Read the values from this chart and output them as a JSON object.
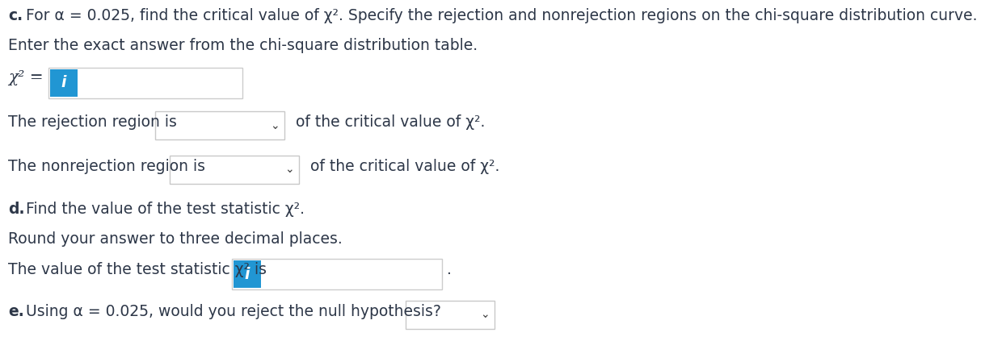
{
  "bg_color": "#ffffff",
  "text_color": "#2d3748",
  "line1_bold": "c.",
  "line1_rest": " For α = 0.025, find the critical value of χ². Specify the rejection and nonrejection regions on the chi-square distribution curve.",
  "line2": "Enter the exact answer from the chi-square distribution table.",
  "chi_sq_label": "χ² =",
  "info_btn_color": "#2196d3",
  "info_btn_text": "i",
  "rejection_label": "The rejection region is",
  "rejection_suffix": " of the critical value of χ².",
  "nonrejection_label": "The nonrejection region is",
  "nonrejection_suffix": " of the critical value of χ².",
  "part_d_bold": "d.",
  "part_d_rest": " Find the value of the test statistic χ².",
  "part_d_line2": "Round your answer to three decimal places.",
  "part_d_line3_pre": "The value of the test statistic χ² is",
  "part_e_bold": "e.",
  "part_e_rest": " Using α = 0.025, would you reject the null hypothesis?",
  "font_size": 13.5,
  "font_family": "DejaVu Sans"
}
